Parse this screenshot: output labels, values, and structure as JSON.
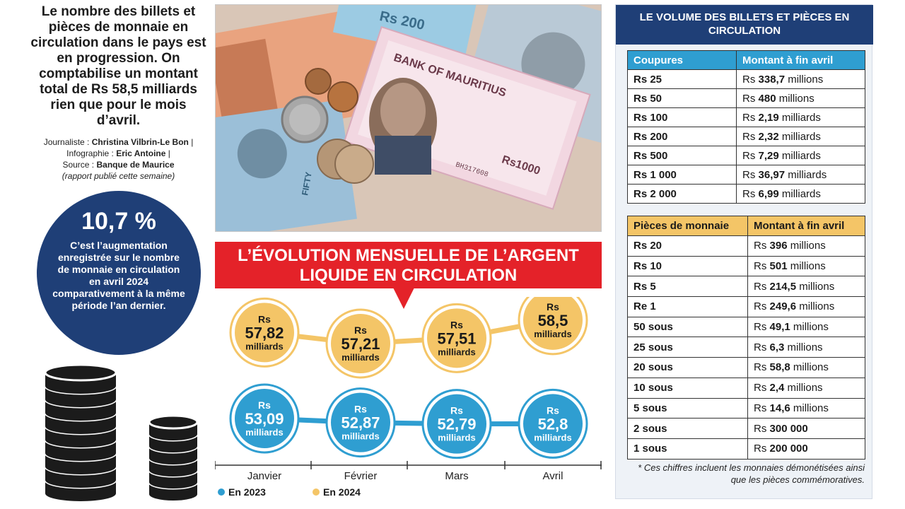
{
  "intro": {
    "text": "Le nombre des billets et pièces de monnaie en circulation dans le pays est en progression. On comptabilise un montant total de Rs 58,5 milliards rien que pour le mois d’avril."
  },
  "credits": {
    "journalist_label": "Journaliste :",
    "journalist": "Christina Vilbrin-Le Bon",
    "infographic_label": "Infographie :",
    "infographic": "Eric Antoine",
    "source_label": "Source :",
    "source": "Banque de Maurice",
    "note": "(rapport publié cette semaine)"
  },
  "stat": {
    "value": "10,7 %",
    "description": "C’est l’augmentation enregistrée sur le nombre de monnaie en circulation en avril 2024 comparativement à la même période l’an dernier."
  },
  "photo": {
    "bank_name": "BANK OF MAURITIUS",
    "denom_1000": "Rs1000",
    "denom_200": "Rs 200",
    "denom_50": "FIFTY",
    "serial": "BH317608"
  },
  "chart_data": {
    "type": "line",
    "title": "L’ÉVOLUTION MENSUELLE DE L’ARGENT LIQUIDE EN CIRCULATION",
    "categories": [
      "Janvier",
      "Février",
      "Mars",
      "Avril"
    ],
    "unit_prefix": "Rs",
    "unit_suffix": "milliards",
    "series": [
      {
        "name": "En 2024",
        "color": "#f4c567",
        "values": [
          57.82,
          57.21,
          57.51,
          58.5
        ],
        "labels": [
          "57,82",
          "57,21",
          "57,51",
          "58,5"
        ]
      },
      {
        "name": "En 2023",
        "color": "#2f9ed1",
        "values": [
          53.09,
          52.87,
          52.79,
          52.8
        ],
        "labels": [
          "53,09",
          "52,87",
          "52,79",
          "52,8"
        ]
      }
    ],
    "legend": [
      "En 2023",
      "En 2024"
    ]
  },
  "panel": {
    "title": "LE VOLUME DES BILLETS ET PIÈCES EN CIRCULATION",
    "notes_table": {
      "headers": [
        "Coupures",
        "Montant à fin avril"
      ],
      "rows": [
        {
          "denom": "Rs 25",
          "prefix": "Rs",
          "value": "338,7",
          "unit": "millions"
        },
        {
          "denom": "Rs 50",
          "prefix": "Rs",
          "value": "480",
          "unit": "millions"
        },
        {
          "denom": "Rs 100",
          "prefix": "Rs",
          "value": "2,19",
          "unit": "milliards"
        },
        {
          "denom": "Rs 200",
          "prefix": "Rs",
          "value": "2,32",
          "unit": "milliards"
        },
        {
          "denom": "Rs 500",
          "prefix": "Rs",
          "value": "7,29",
          "unit": "milliards"
        },
        {
          "denom": "Rs 1 000",
          "prefix": "Rs",
          "value": "36,97",
          "unit": "milliards"
        },
        {
          "denom": "Rs 2 000",
          "prefix": "Rs",
          "value": "6,99",
          "unit": "milliards"
        }
      ]
    },
    "coins_table": {
      "headers": [
        "Pièces de monnaie",
        "Montant à fin avril"
      ],
      "rows": [
        {
          "denom": "Rs 20",
          "prefix": "Rs",
          "value": "396",
          "unit": "millions"
        },
        {
          "denom": "Rs 10",
          "prefix": "Rs",
          "value": "501",
          "unit": "millions"
        },
        {
          "denom": "Rs 5",
          "prefix": "Rs",
          "value": "214,5",
          "unit": "millions"
        },
        {
          "denom": "Re 1",
          "prefix": "Rs",
          "value": "249,6",
          "unit": "millions"
        },
        {
          "denom": "50 sous",
          "prefix": "Rs",
          "value": "49,1",
          "unit": "millions"
        },
        {
          "denom": "25 sous",
          "prefix": "Rs",
          "value": "6,3",
          "unit": "millions"
        },
        {
          "denom": "20 sous",
          "prefix": "Rs",
          "value": "58,8",
          "unit": "millions"
        },
        {
          "denom": "10 sous",
          "prefix": "Rs",
          "value": "2,4",
          "unit": "millions"
        },
        {
          "denom": "5 sous",
          "prefix": "Rs",
          "value": "14,6",
          "unit": "millions"
        },
        {
          "denom": "2 sous",
          "prefix": "Rs",
          "value": "300 000",
          "unit": ""
        },
        {
          "denom": "1 sous",
          "prefix": "Rs",
          "value": "200 000",
          "unit": ""
        }
      ]
    },
    "footnote": "* Ces chiffres incluent les monnaies démonétisées ainsi que les pièces commémoratives."
  }
}
